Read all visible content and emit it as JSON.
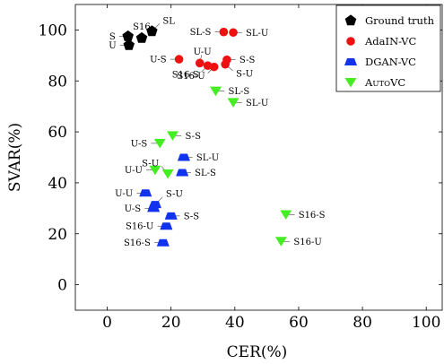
{
  "chart_data": {
    "type": "scatter",
    "xlabel": "CER(%)",
    "ylabel": "SVAR(%)",
    "xlim": [
      -10,
      105
    ],
    "ylim": [
      -10,
      110
    ],
    "xticks": [
      0,
      20,
      40,
      60,
      80,
      100
    ],
    "yticks": [
      0,
      20,
      40,
      60,
      80,
      100
    ],
    "xtick_labels": [
      "0",
      "20",
      "40",
      "60",
      "80",
      "100"
    ],
    "ytick_labels": [
      "0",
      "20",
      "40",
      "60",
      "80",
      "100"
    ],
    "grid": false,
    "legend_position": "top-right",
    "series": [
      {
        "name": "Ground truth",
        "marker": "pentagon",
        "color": "#000000",
        "points": [
          {
            "x": 6.5,
            "y": 97.5,
            "label": "S",
            "label_side": "left"
          },
          {
            "x": 6.8,
            "y": 94.0,
            "label": "U",
            "label_side": "left"
          },
          {
            "x": 10.8,
            "y": 96.8,
            "label": "S16",
            "label_side": "above"
          },
          {
            "x": 14.0,
            "y": 99.5,
            "label": "SL",
            "label_side": "upright"
          }
        ]
      },
      {
        "name": "AdaIN-VC",
        "marker": "circle",
        "color": "#ee1111",
        "points": [
          {
            "x": 36.5,
            "y": 99.2,
            "label": "SL-S",
            "label_side": "left"
          },
          {
            "x": 39.5,
            "y": 99.0,
            "label": "SL-U",
            "label_side": "right"
          },
          {
            "x": 22.5,
            "y": 88.5,
            "label": "U-S",
            "label_side": "left"
          },
          {
            "x": 29.0,
            "y": 87.0,
            "label": "U-U",
            "label_side": "up"
          },
          {
            "x": 31.5,
            "y": 86.0,
            "label": "S16-S",
            "label_side": "downleft"
          },
          {
            "x": 33.5,
            "y": 85.5,
            "label": "S16-U",
            "label_side": "downleft"
          },
          {
            "x": 37.0,
            "y": 86.5,
            "label": "S-U",
            "label_side": "downright"
          },
          {
            "x": 37.5,
            "y": 88.3,
            "label": "S-S",
            "label_side": "right"
          }
        ]
      },
      {
        "name": "DGAN-VC",
        "marker": "trapezoid",
        "color": "#1133ee",
        "points": [
          {
            "x": 24.0,
            "y": 50.0,
            "label": "SL-U",
            "label_side": "right"
          },
          {
            "x": 23.5,
            "y": 44.0,
            "label": "SL-S",
            "label_side": "right"
          },
          {
            "x": 12.0,
            "y": 36.0,
            "label": "U-U",
            "label_side": "left"
          },
          {
            "x": 15.0,
            "y": 31.5,
            "label": "S-U",
            "label_side": "upright"
          },
          {
            "x": 14.5,
            "y": 30.0,
            "label": "U-S",
            "label_side": "left"
          },
          {
            "x": 20.0,
            "y": 27.0,
            "label": "S-S",
            "label_side": "right"
          },
          {
            "x": 18.5,
            "y": 23.0,
            "label": "S16-U",
            "label_side": "left"
          },
          {
            "x": 17.5,
            "y": 16.5,
            "label": "S16-S",
            "label_side": "left"
          }
        ]
      },
      {
        "name": "AutoVC",
        "marker": "diamond",
        "color": "#44ee22",
        "points": [
          {
            "x": 34.0,
            "y": 76.0,
            "label": "SL-S",
            "label_side": "right"
          },
          {
            "x": 39.5,
            "y": 71.5,
            "label": "SL-U",
            "label_side": "right"
          },
          {
            "x": 16.5,
            "y": 55.5,
            "label": "U-S",
            "label_side": "left"
          },
          {
            "x": 20.5,
            "y": 58.5,
            "label": "S-S",
            "label_side": "right"
          },
          {
            "x": 15.0,
            "y": 45.0,
            "label": "U-U",
            "label_side": "left"
          },
          {
            "x": 19.0,
            "y": 43.5,
            "label": "S-U",
            "label_side": "upleft"
          },
          {
            "x": 56.0,
            "y": 27.5,
            "label": "S16-S",
            "label_side": "right"
          },
          {
            "x": 54.5,
            "y": 17.0,
            "label": "S16-U",
            "label_side": "right"
          }
        ]
      }
    ]
  }
}
